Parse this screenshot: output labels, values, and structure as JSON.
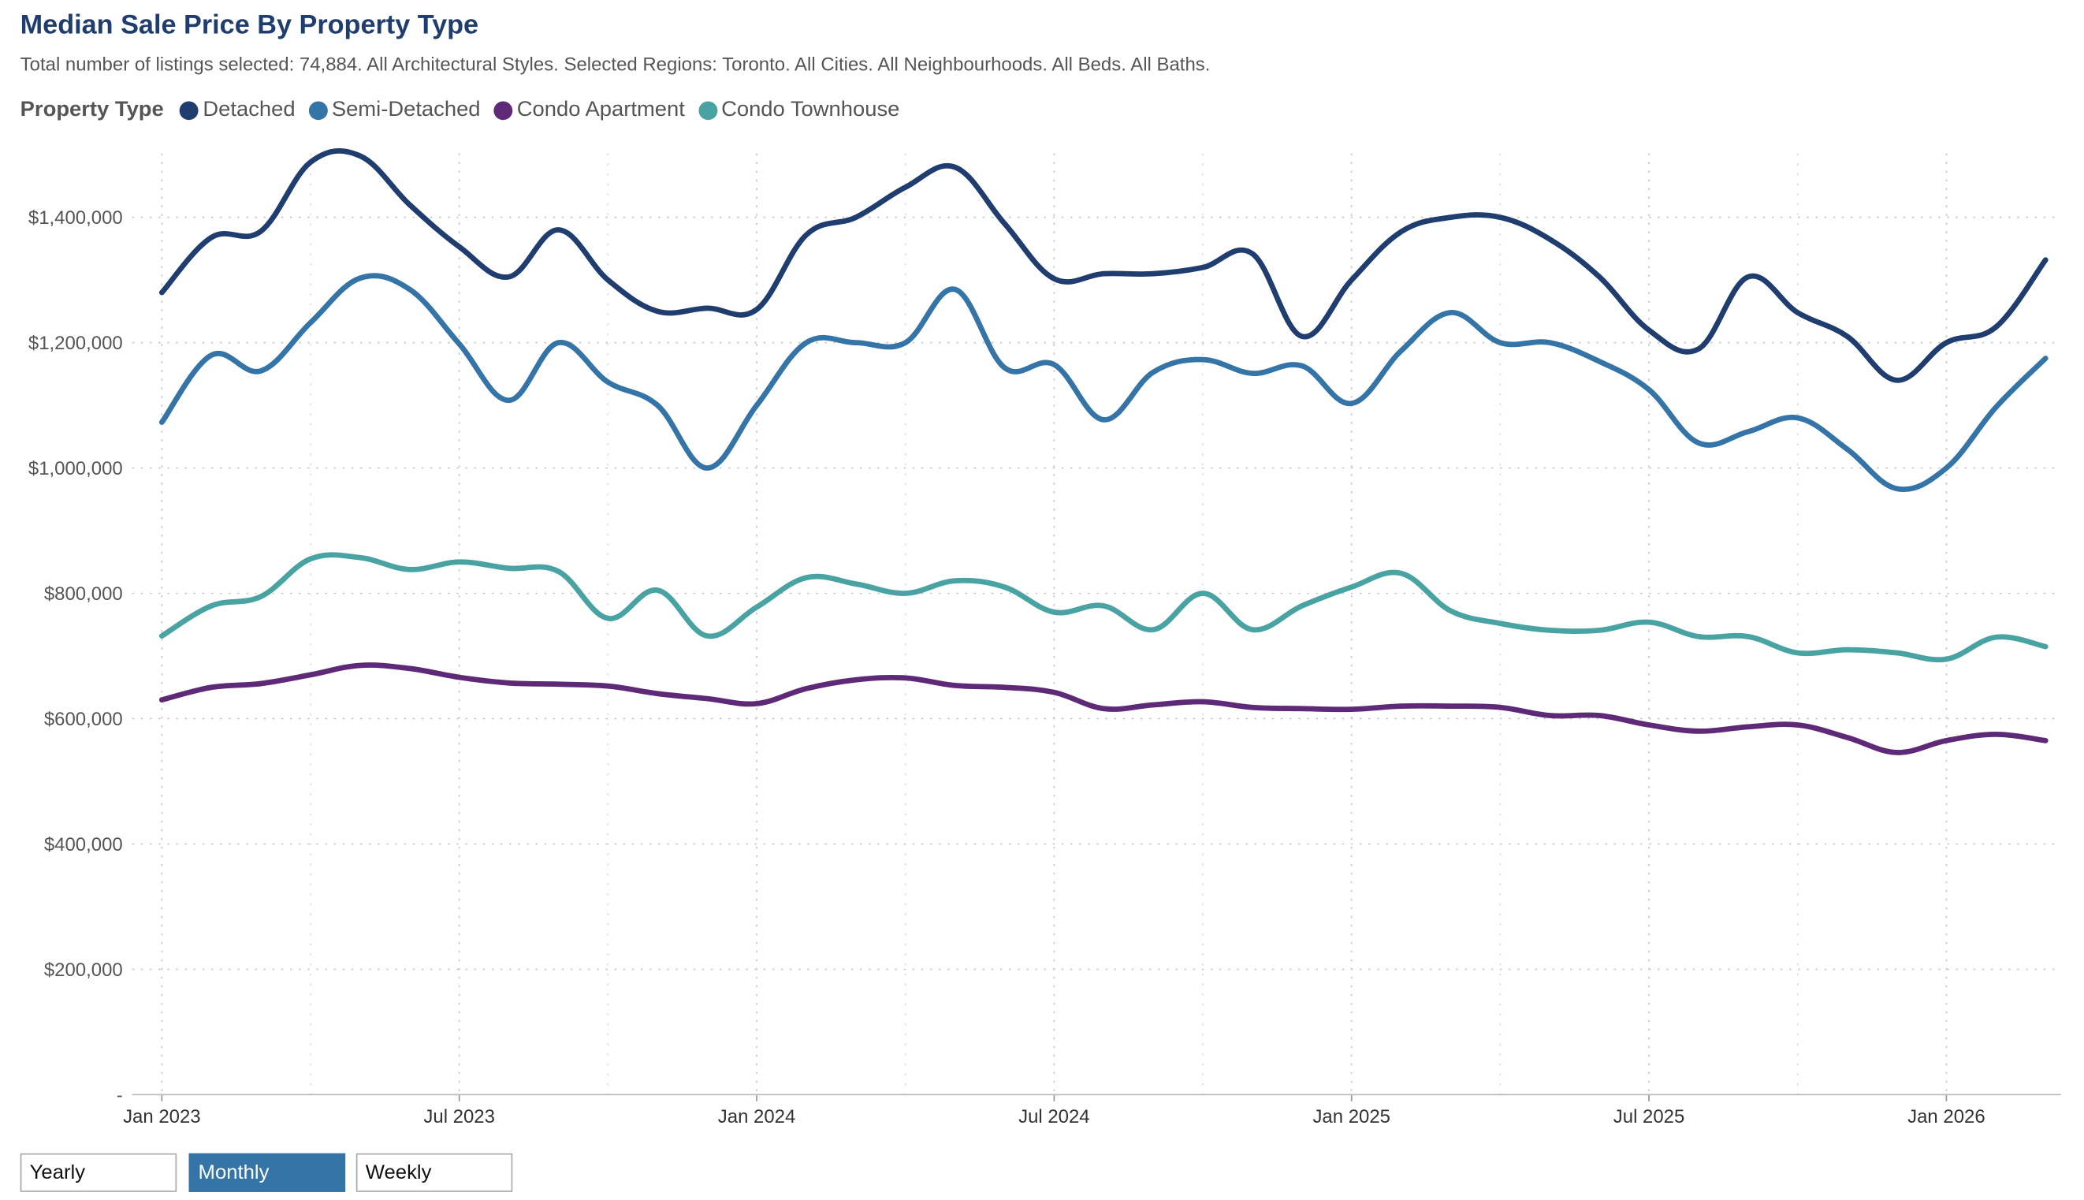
{
  "header": {
    "title": "Median Sale Price By Property Type",
    "subtitle": "Total number of listings selected: 74,884. All Architectural Styles. Selected Regions: Toronto. All Cities. All Neighbourhoods. All Beds. All Baths."
  },
  "legend": {
    "title": "Property Type",
    "items": [
      {
        "label": "Detached",
        "color": "#1f3d6e"
      },
      {
        "label": "Semi-Detached",
        "color": "#3574a6"
      },
      {
        "label": "Condo Apartment",
        "color": "#5e2a78"
      },
      {
        "label": "Condo Townhouse",
        "color": "#4aa3a3"
      }
    ]
  },
  "controls": {
    "yearly": "Yearly",
    "monthly": "Monthly",
    "weekly": "Weekly",
    "selected": "Monthly"
  },
  "chart_data": {
    "type": "line",
    "title": "Median Sale Price By Property Type",
    "x": [
      "2023-01",
      "2023-02",
      "2023-03",
      "2023-04",
      "2023-05",
      "2023-06",
      "2023-07",
      "2023-08",
      "2023-09",
      "2023-10",
      "2023-11",
      "2023-12",
      "2024-01",
      "2024-02",
      "2024-03",
      "2024-04",
      "2024-05",
      "2024-06",
      "2024-07",
      "2024-08",
      "2024-09",
      "2024-10",
      "2024-11",
      "2024-12",
      "2025-01",
      "2025-02",
      "2025-03",
      "2025-04",
      "2025-05",
      "2025-06",
      "2025-07",
      "2025-08",
      "2025-09",
      "2025-10",
      "2025-11",
      "2025-12",
      "2026-01",
      "2026-02",
      "2026-03"
    ],
    "x_tick_labels": [
      {
        "x": "2023-01",
        "label": "Jan 2023"
      },
      {
        "x": "2023-07",
        "label": "Jul 2023"
      },
      {
        "x": "2024-01",
        "label": "Jan 2024"
      },
      {
        "x": "2024-07",
        "label": "Jul 2024"
      },
      {
        "x": "2025-01",
        "label": "Jan 2025"
      },
      {
        "x": "2025-07",
        "label": "Jul 2025"
      },
      {
        "x": "2026-01",
        "label": "Jan 2026"
      }
    ],
    "y_ticks": [
      {
        "value": 0,
        "label": "-"
      },
      {
        "value": 200000,
        "label": "$200,000"
      },
      {
        "value": 400000,
        "label": "$400,000"
      },
      {
        "value": 600000,
        "label": "$600,000"
      },
      {
        "value": 800000,
        "label": "$800,000"
      },
      {
        "value": 1000000,
        "label": "$1,000,000"
      },
      {
        "value": 1200000,
        "label": "$1,200,000"
      },
      {
        "value": 1400000,
        "label": "$1,400,000"
      }
    ],
    "ylim": [
      0,
      1500000
    ],
    "grid": true,
    "legend_position": "top-left",
    "series": [
      {
        "name": "Detached",
        "color": "#1f3d6e",
        "values": [
          1280000,
          1368000,
          1378000,
          1488000,
          1498000,
          1420000,
          1353000,
          1305000,
          1380000,
          1300000,
          1250000,
          1255000,
          1253000,
          1372000,
          1400000,
          1448000,
          1480000,
          1390000,
          1302000,
          1310000,
          1310000,
          1320000,
          1342000,
          1210000,
          1300000,
          1377000,
          1400000,
          1400000,
          1365000,
          1305000,
          1220000,
          1190000,
          1305000,
          1248000,
          1210000,
          1140000,
          1200000,
          1225000,
          1332000
        ]
      },
      {
        "name": "Semi-Detached",
        "color": "#3574a6",
        "values": [
          1073000,
          1180000,
          1155000,
          1232000,
          1303000,
          1285000,
          1198000,
          1108000,
          1200000,
          1137000,
          1100000,
          1000000,
          1100000,
          1200000,
          1200000,
          1200000,
          1285000,
          1160000,
          1165000,
          1077000,
          1153000,
          1173000,
          1151000,
          1163000,
          1103000,
          1187000,
          1248000,
          1200000,
          1200000,
          1170000,
          1125000,
          1040000,
          1058000,
          1080000,
          1030000,
          967000,
          1000000,
          1097000,
          1175000
        ]
      },
      {
        "name": "Condo Apartment",
        "color": "#5e2a78",
        "values": [
          630000,
          650000,
          656000,
          670000,
          685000,
          680000,
          666000,
          657000,
          655000,
          652000,
          640000,
          632000,
          624000,
          648000,
          662000,
          665000,
          653000,
          650000,
          642000,
          616000,
          622000,
          627000,
          618000,
          616000,
          615000,
          620000,
          620000,
          618000,
          605000,
          605000,
          590000,
          580000,
          587000,
          590000,
          570000,
          546000,
          565000,
          575000,
          565000
        ]
      },
      {
        "name": "Condo Townhouse",
        "color": "#4aa3a3",
        "values": [
          732000,
          780000,
          795000,
          855000,
          857000,
          838000,
          850000,
          840000,
          835000,
          760000,
          805000,
          732000,
          778000,
          825000,
          815000,
          800000,
          820000,
          810000,
          770000,
          780000,
          742000,
          800000,
          742000,
          780000,
          810000,
          832000,
          772000,
          752000,
          741000,
          741000,
          754000,
          731000,
          731000,
          705000,
          710000,
          705000,
          695000,
          730000,
          715000
        ]
      }
    ]
  }
}
